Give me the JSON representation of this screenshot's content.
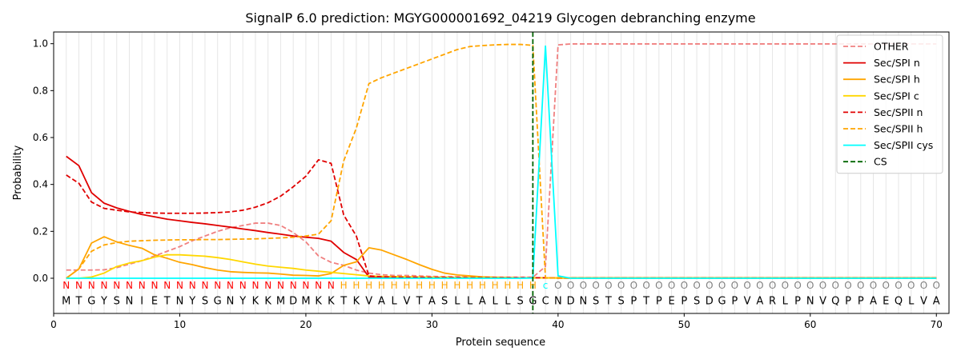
{
  "chart_data": {
    "type": "line",
    "title": "SignalP 6.0 prediction: MGYG000001692_04219 Glycogen debranching enzyme",
    "xlabel": "Protein sequence",
    "ylabel": "Probability",
    "xlim": [
      0,
      71
    ],
    "ylim": [
      -0.15,
      1.05
    ],
    "x_ticks": [
      0,
      10,
      20,
      30,
      40,
      50,
      60,
      70
    ],
    "y_ticks": [
      0.0,
      0.2,
      0.4,
      0.6,
      0.8,
      1.0
    ],
    "grid": "vertical lines at each residue position",
    "legend_position": "top-right",
    "sequence": [
      "M",
      "T",
      "G",
      "Y",
      "S",
      "N",
      "I",
      "E",
      "T",
      "N",
      "Y",
      "S",
      "G",
      "N",
      "Y",
      "K",
      "K",
      "M",
      "D",
      "M",
      "K",
      "K",
      "T",
      "K",
      "V",
      "A",
      "L",
      "V",
      "T",
      "A",
      "S",
      "L",
      "L",
      "A",
      "L",
      "L",
      "S",
      "G",
      "C",
      "N",
      "D",
      "N",
      "S",
      "T",
      "S",
      "P",
      "T",
      "P",
      "E",
      "P",
      "S",
      "D",
      "G",
      "P",
      "V",
      "A",
      "R",
      "L",
      "P",
      "N",
      "V",
      "Q",
      "P",
      "P",
      "A",
      "E",
      "Q",
      "L",
      "V",
      "A"
    ],
    "region_labels": [
      "N",
      "N",
      "N",
      "N",
      "N",
      "N",
      "N",
      "N",
      "N",
      "N",
      "N",
      "N",
      "N",
      "N",
      "N",
      "N",
      "N",
      "N",
      "N",
      "N",
      "N",
      "N",
      "H",
      "H",
      "H",
      "H",
      "H",
      "H",
      "H",
      "H",
      "H",
      "H",
      "H",
      "H",
      "H",
      "H",
      "H",
      "H",
      "c",
      "O",
      "O",
      "O",
      "O",
      "O",
      "O",
      "O",
      "O",
      "O",
      "O",
      "O",
      "O",
      "O",
      "O",
      "O",
      "O",
      "O",
      "O",
      "O",
      "O",
      "O",
      "O",
      "O",
      "O",
      "O",
      "O",
      "O",
      "O",
      "O",
      "O",
      "O"
    ],
    "region_colors": {
      "N": "#ff0000",
      "H": "#ffa500",
      "c": "#00ffff",
      "O": "#808080"
    },
    "cleavage_site": 38,
    "series": [
      {
        "name": "OTHER",
        "color": "#f08080",
        "dash": "dashed",
        "values": [
          0.035,
          0.035,
          0.035,
          0.036,
          0.045,
          0.06,
          0.075,
          0.095,
          0.115,
          0.135,
          0.16,
          0.18,
          0.2,
          0.215,
          0.225,
          0.235,
          0.235,
          0.225,
          0.195,
          0.155,
          0.095,
          0.068,
          0.055,
          0.035,
          0.022,
          0.015,
          0.012,
          0.012,
          0.01,
          0.008,
          0.007,
          0.006,
          0.005,
          0.004,
          0.004,
          0.004,
          0.004,
          0.004,
          0.05,
          0.995,
          0.999,
          0.999,
          0.999,
          0.999,
          0.999,
          0.999,
          0.999,
          0.999,
          0.999,
          0.999,
          0.999,
          0.999,
          0.999,
          0.999,
          0.999,
          0.999,
          0.999,
          0.999,
          0.999,
          0.999,
          0.999,
          0.999,
          0.999,
          0.999,
          0.999,
          0.999,
          0.999,
          0.999,
          0.999,
          0.999
        ]
      },
      {
        "name": "Sec/SPI n",
        "color": "#e00000",
        "dash": "solid",
        "values": [
          0.52,
          0.48,
          0.365,
          0.32,
          0.3,
          0.285,
          0.272,
          0.262,
          0.252,
          0.245,
          0.238,
          0.232,
          0.225,
          0.218,
          0.21,
          0.203,
          0.195,
          0.188,
          0.18,
          0.175,
          0.17,
          0.158,
          0.11,
          0.08,
          0.005,
          0.003,
          0.002,
          0.002,
          0.002,
          0.002,
          0.002,
          0.002,
          0.002,
          0.002,
          0.002,
          0.002,
          0.002,
          0.002,
          0.002,
          0.001,
          0.001,
          0.001,
          0.001,
          0.001,
          0.001,
          0.001,
          0.001,
          0.001,
          0.001,
          0.001,
          0.001,
          0.001,
          0.001,
          0.001,
          0.001,
          0.001,
          0.001,
          0.001,
          0.001,
          0.001,
          0.001,
          0.001,
          0.001,
          0.001,
          0.001,
          0.001,
          0.001,
          0.001,
          0.001,
          0.001
        ]
      },
      {
        "name": "Sec/SPI h",
        "color": "#ffa500",
        "dash": "solid",
        "values": [
          0.0,
          0.04,
          0.15,
          0.177,
          0.155,
          0.14,
          0.128,
          0.1,
          0.085,
          0.068,
          0.058,
          0.045,
          0.035,
          0.028,
          0.025,
          0.023,
          0.022,
          0.018,
          0.013,
          0.012,
          0.01,
          0.02,
          0.055,
          0.07,
          0.13,
          0.12,
          0.1,
          0.08,
          0.058,
          0.038,
          0.022,
          0.014,
          0.01,
          0.006,
          0.004,
          0.003,
          0.002,
          0.002,
          0.002,
          0.001,
          0.001,
          0.001,
          0.001,
          0.001,
          0.001,
          0.001,
          0.001,
          0.001,
          0.001,
          0.001,
          0.001,
          0.001,
          0.001,
          0.001,
          0.001,
          0.001,
          0.001,
          0.001,
          0.001,
          0.001,
          0.001,
          0.001,
          0.001,
          0.001,
          0.001,
          0.001,
          0.001,
          0.001,
          0.001,
          0.001
        ]
      },
      {
        "name": "Sec/SPI c",
        "color": "#ffd700",
        "dash": "solid",
        "values": [
          0.0,
          0.0,
          0.005,
          0.022,
          0.05,
          0.065,
          0.075,
          0.09,
          0.1,
          0.1,
          0.097,
          0.094,
          0.088,
          0.08,
          0.07,
          0.06,
          0.052,
          0.047,
          0.042,
          0.035,
          0.03,
          0.025,
          0.02,
          0.015,
          0.01,
          0.008,
          0.007,
          0.006,
          0.005,
          0.004,
          0.004,
          0.003,
          0.003,
          0.002,
          0.002,
          0.002,
          0.002,
          0.002,
          0.001,
          0.001,
          0.001,
          0.001,
          0.001,
          0.001,
          0.001,
          0.001,
          0.001,
          0.001,
          0.001,
          0.001,
          0.001,
          0.001,
          0.001,
          0.001,
          0.001,
          0.001,
          0.001,
          0.001,
          0.001,
          0.001,
          0.001,
          0.001,
          0.001,
          0.001,
          0.001,
          0.001,
          0.001,
          0.001,
          0.001,
          0.001
        ]
      },
      {
        "name": "Sec/SPII n",
        "color": "#e00000",
        "dash": "dashed",
        "values": [
          0.44,
          0.405,
          0.325,
          0.298,
          0.29,
          0.283,
          0.28,
          0.278,
          0.277,
          0.277,
          0.277,
          0.278,
          0.28,
          0.283,
          0.29,
          0.303,
          0.322,
          0.35,
          0.39,
          0.435,
          0.505,
          0.49,
          0.27,
          0.18,
          0.01,
          0.006,
          0.005,
          0.004,
          0.004,
          0.003,
          0.003,
          0.003,
          0.002,
          0.002,
          0.002,
          0.002,
          0.002,
          0.002,
          0.002,
          0.001,
          0.001,
          0.001,
          0.001,
          0.001,
          0.001,
          0.001,
          0.001,
          0.001,
          0.001,
          0.001,
          0.001,
          0.001,
          0.001,
          0.001,
          0.001,
          0.001,
          0.001,
          0.001,
          0.001,
          0.001,
          0.001,
          0.001,
          0.001,
          0.001,
          0.001,
          0.001,
          0.001,
          0.001,
          0.001,
          0.001
        ]
      },
      {
        "name": "Sec/SPII h",
        "color": "#ffa500",
        "dash": "dashed",
        "values": [
          0.0,
          0.04,
          0.115,
          0.142,
          0.152,
          0.158,
          0.16,
          0.162,
          0.163,
          0.164,
          0.164,
          0.165,
          0.165,
          0.166,
          0.167,
          0.168,
          0.17,
          0.172,
          0.175,
          0.18,
          0.188,
          0.245,
          0.5,
          0.64,
          0.83,
          0.855,
          0.875,
          0.895,
          0.915,
          0.935,
          0.955,
          0.975,
          0.988,
          0.992,
          0.995,
          0.997,
          0.997,
          0.993,
          0.002,
          0.001,
          0.001,
          0.001,
          0.001,
          0.001,
          0.001,
          0.001,
          0.001,
          0.001,
          0.001,
          0.001,
          0.001,
          0.001,
          0.001,
          0.001,
          0.001,
          0.001,
          0.001,
          0.001,
          0.001,
          0.001,
          0.001,
          0.001,
          0.001,
          0.001,
          0.001,
          0.001,
          0.001,
          0.001,
          0.001,
          0.001
        ]
      },
      {
        "name": "Sec/SPII cys",
        "color": "#00ffff",
        "dash": "solid",
        "values": [
          0.0,
          0.0,
          0.0,
          0.0,
          0.0,
          0.0,
          0.0,
          0.0,
          0.0,
          0.0,
          0.0,
          0.0,
          0.0,
          0.0,
          0.0,
          0.0,
          0.0,
          0.0,
          0.0,
          0.0,
          0.0,
          0.0,
          0.0,
          0.0,
          0.0,
          0.0,
          0.0,
          0.0,
          0.0,
          0.0,
          0.0,
          0.0,
          0.0,
          0.0,
          0.0,
          0.0,
          0.0,
          0.001,
          0.99,
          0.01,
          0.0,
          0.0,
          0.0,
          0.0,
          0.0,
          0.0,
          0.0,
          0.0,
          0.0,
          0.0,
          0.0,
          0.0,
          0.0,
          0.0,
          0.0,
          0.0,
          0.0,
          0.0,
          0.0,
          0.0,
          0.0,
          0.0,
          0.0,
          0.0,
          0.0,
          0.0,
          0.0,
          0.0,
          0.0,
          0.0
        ]
      },
      {
        "name": "CS",
        "color": "#006400",
        "dash": "dashed",
        "x": 38
      }
    ]
  }
}
